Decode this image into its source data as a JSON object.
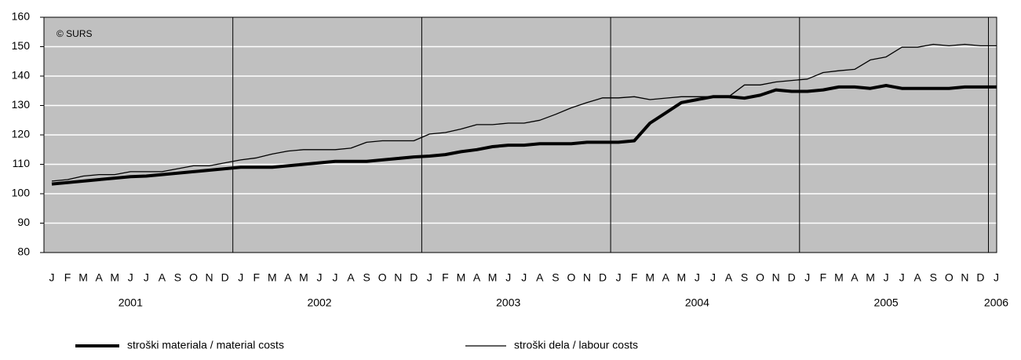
{
  "chart_data": {
    "type": "line",
    "annotation": "© SURS",
    "categories": [
      "J",
      "F",
      "M",
      "A",
      "M",
      "J",
      "J",
      "A",
      "S",
      "O",
      "N",
      "D",
      "J",
      "F",
      "M",
      "A",
      "M",
      "J",
      "J",
      "A",
      "S",
      "O",
      "N",
      "D",
      "J",
      "F",
      "M",
      "A",
      "M",
      "J",
      "J",
      "A",
      "S",
      "O",
      "N",
      "D",
      "J",
      "F",
      "M",
      "A",
      "M",
      "J",
      "J",
      "A",
      "S",
      "O",
      "N",
      "D",
      "J",
      "F",
      "M",
      "A",
      "M",
      "J",
      "J",
      "A",
      "S",
      "O",
      "N",
      "D",
      "J"
    ],
    "years": [
      "2001",
      "2002",
      "2003",
      "2004",
      "2005",
      "2006"
    ],
    "series": [
      {
        "name": "stroški materiala / material costs",
        "color": "#000000",
        "width": 4,
        "values": [
          103.3,
          103.8,
          104.3,
          104.8,
          105.3,
          105.8,
          106,
          106.5,
          107,
          107.5,
          108,
          108.5,
          109,
          109,
          109,
          109.5,
          110,
          110.5,
          111,
          111,
          111,
          111.5,
          112,
          112.5,
          112.8,
          113.3,
          114.3,
          115,
          116,
          116.5,
          116.5,
          117,
          117,
          117,
          117.5,
          117.5,
          117.5,
          118,
          124,
          127.5,
          131,
          132,
          133,
          133,
          132.5,
          133.5,
          135.3,
          134.8,
          134.8,
          135.3,
          136.3,
          136.3,
          135.8,
          136.8,
          135.8,
          135.8,
          135.8,
          135.8,
          136.3,
          136.3,
          136.3
        ]
      },
      {
        "name": "stroški dela / labour costs",
        "color": "#000000",
        "width": 1.3,
        "values": [
          104.3,
          104.8,
          106,
          106.5,
          106.5,
          107.5,
          107.5,
          107.5,
          108.5,
          109.5,
          109.5,
          110.5,
          111.5,
          112.2,
          113.5,
          114.5,
          115,
          115,
          115,
          115.5,
          117.5,
          118,
          118,
          118,
          120.3,
          120.8,
          122,
          123.5,
          123.5,
          124,
          124,
          125,
          127,
          129.2,
          131,
          132.6,
          132.6,
          133,
          132,
          132.5,
          133,
          133,
          133,
          133,
          137,
          137,
          138,
          138.5,
          139,
          141.2,
          141.8,
          142.3,
          145.5,
          146.5,
          149.8,
          149.8,
          150.8,
          150.3,
          150.8,
          150.3,
          150.3
        ]
      }
    ],
    "ylim": [
      80,
      160
    ],
    "yticks": [
      80,
      90,
      100,
      110,
      120,
      130,
      140,
      150,
      160
    ],
    "grid": true,
    "plot_background": "#c0c0c0",
    "legend": "bottom"
  }
}
